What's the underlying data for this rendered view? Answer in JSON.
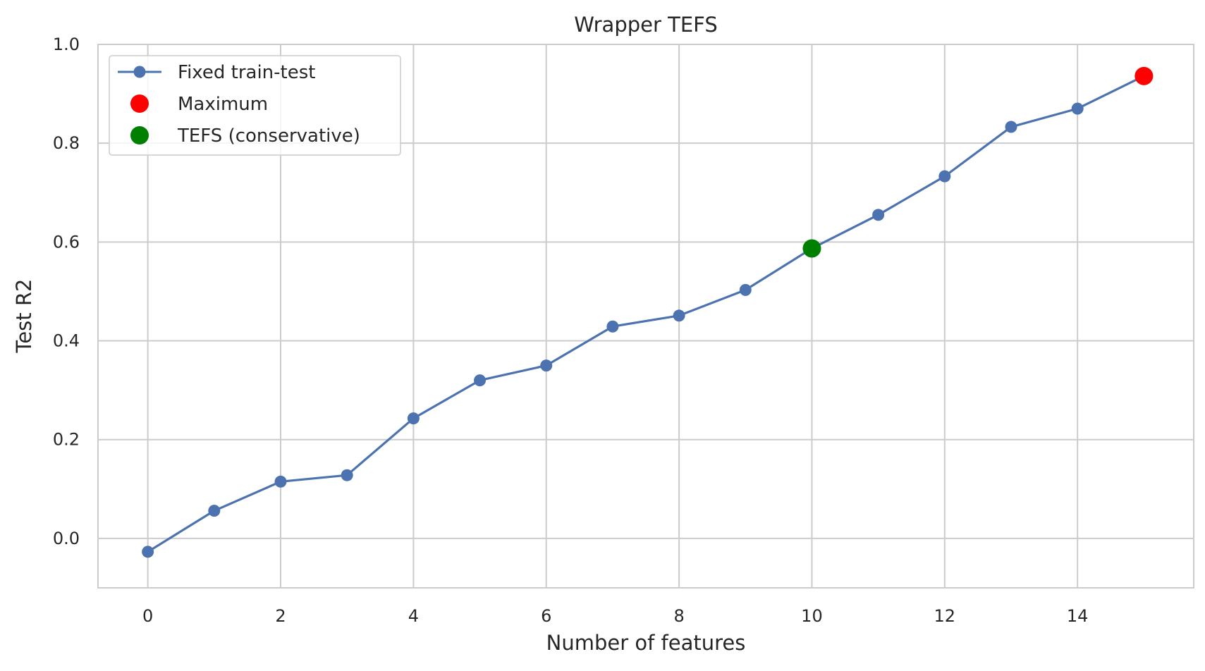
{
  "chart_data": {
    "type": "line",
    "title": "Wrapper TEFS",
    "xlabel": "Number of features",
    "ylabel": "Test R2",
    "xlim": [
      -0.75,
      15.75
    ],
    "ylim": [
      -0.1,
      1.0
    ],
    "x_ticks": [
      0,
      2,
      4,
      6,
      8,
      10,
      12,
      14
    ],
    "x_tick_labels": [
      "0",
      "2",
      "4",
      "6",
      "8",
      "10",
      "12",
      "14"
    ],
    "y_ticks": [
      0.0,
      0.2,
      0.4,
      0.6,
      0.8,
      1.0
    ],
    "y_tick_labels": [
      "0.0",
      "0.2",
      "0.4",
      "0.6",
      "0.8",
      "1.0"
    ],
    "grid": true,
    "legend_position": "top-left",
    "series": [
      {
        "name": "Fixed train-test",
        "color": "#4c72b0",
        "marker": "circle",
        "x": [
          0,
          1,
          2,
          3,
          4,
          5,
          6,
          7,
          8,
          9,
          10,
          11,
          12,
          13,
          14,
          15
        ],
        "y": [
          -0.027,
          0.056,
          0.115,
          0.128,
          0.243,
          0.32,
          0.35,
          0.429,
          0.451,
          0.503,
          0.587,
          0.655,
          0.733,
          0.833,
          0.87,
          0.936
        ]
      },
      {
        "name": "Maximum",
        "color": "#ff0000",
        "marker": "circle",
        "x": [
          15
        ],
        "y": [
          0.936
        ]
      },
      {
        "name": "TEFS (conservative)",
        "color": "#008000",
        "marker": "circle",
        "x": [
          10
        ],
        "y": [
          0.587
        ]
      }
    ]
  }
}
